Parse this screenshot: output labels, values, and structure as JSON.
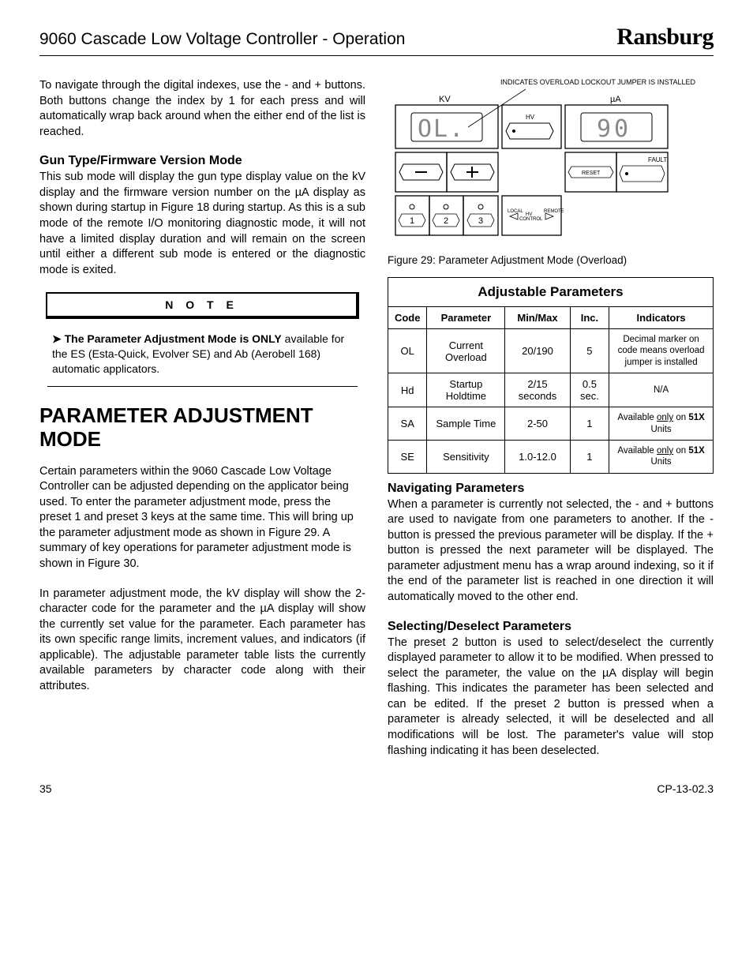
{
  "header": {
    "title": "9060 Cascade Low Voltage Controller - Operation",
    "brand": "Ransburg"
  },
  "left": {
    "intro": "To navigate through the digital indexes, use the - and + buttons.  Both buttons change the index by 1 for each press and will automatically wrap back around when the either end of the list is reached.",
    "sub1_title": "Gun Type/Firmware Version Mode",
    "sub1_body": "This sub mode will display the gun type display value on the kV display and the firmware version number on the µA display as shown during startup in Figure 18 during startup.  As this is a sub mode of the remote I/O monitoring diagnostic mode, it will not have a limited display duration and will remain on the screen until either a different sub mode is entered or the diagnostic mode is exited.",
    "note_label": "N O T E",
    "note_body_pre": "➤ The Parameter Adjustment Mode is ",
    "note_body_bold": "ONLY",
    "note_body_post": " available for the ES (Esta-Quick, Evolver SE) and Ab (Aerobell 168) automatic applicators.",
    "big_heading": "PARAMETER ADJUSTMENT MODE",
    "para2": "Certain parameters within the 9060 Cascade Low Voltage Controller can be adjusted depending on the applicator being used.  To enter the parameter adjustment mode, press the preset 1 and preset 3 keys at the same  time.  This will bring up the parameter adjustment mode as shown in Figure 29.  A summary of key operations for parameter adjustment mode is shown in Figure 30.",
    "para3": "In parameter adjustment mode, the kV display will show the 2-character code for the parameter and the µA display will show the currently set value for the parameter.  Each parameter has its own specific range limits, increment values, and indicators (if applicable).  The adjustable parameter table lists the currently available parameters by character code along with their attributes."
  },
  "right": {
    "overload_label": "INDICATES OVERLOAD LOCKOUT JUMPER IS INSTALLED",
    "panel": {
      "kv_label": "KV",
      "ua_label": "µA",
      "kv_digits": "OL.",
      "ua_digits": "90",
      "hv_label": "HV",
      "reset_label": "RESET",
      "fault_label": "FAULT",
      "presets": [
        "1",
        "2",
        "3"
      ],
      "local_label": "LOCAL",
      "hvcontrol_label": "HV CONTROL",
      "remote_label": "REMOTE",
      "colors": {
        "stroke": "#000000",
        "segment": "#6b6b6b",
        "bg": "#ffffff"
      }
    },
    "figure_caption": "Figure 29: Parameter Adjustment Mode (Overload)",
    "table": {
      "title": "Adjustable Parameters",
      "headers": [
        "Code",
        "Parameter",
        "Min/Max",
        "Inc.",
        "Indicators"
      ],
      "rows": [
        {
          "code": "OL",
          "param": "Current Overload",
          "minmax": "20/190",
          "inc": "5",
          "indic": "Decimal marker on code means overload jumper is installed"
        },
        {
          "code": "Hd",
          "param": "Startup Holdtime",
          "minmax": "2/15 seconds",
          "inc": "0.5 sec.",
          "indic": "N/A"
        },
        {
          "code": "SA",
          "param": "Sample Time",
          "minmax": "2-50",
          "inc": "1",
          "indic": "Available <u>only</u> on <b>51X</b> Units"
        },
        {
          "code": "SE",
          "param": "Sensitivity",
          "minmax": "1.0-12.0",
          "inc": "1",
          "indic": "Available <u>only</u> on <b>51X</b> Units"
        }
      ],
      "col_widths": [
        "12%",
        "24%",
        "20%",
        "12%",
        "32%"
      ]
    },
    "nav_title": "Navigating Parameters",
    "nav_body": "When a parameter is currently not selected, the - and + buttons are used to navigate from one parameters to another.  If the - button is pressed the previous parameter will be display.  If the + button is pressed the next parameter will be displayed.  The parameter adjustment menu has a wrap around indexing, so it if the end of the parameter list is reached in one direction it will automatically moved to the other end.",
    "sel_title": "Selecting/Deselect Parameters",
    "sel_body": "The preset 2 button is used to select/deselect the currently displayed parameter to allow it to be modified.  When pressed to select the parameter, the value on the µA display will begin flashing.  This indicates the parameter has been selected and can be edited.  If the preset 2 button is pressed when a parameter is already selected, it will be deselected and all modifications will be lost.  The parameter's value will stop flashing indicating it has been deselected."
  },
  "footer": {
    "page": "35",
    "doc": "CP-13-02.3"
  }
}
